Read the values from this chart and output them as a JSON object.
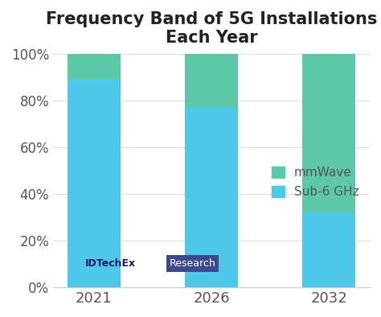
{
  "title_line1": "Frequency Band of 5G Installations",
  "title_line2": "Each Year",
  "categories": [
    "2021",
    "2026",
    "2032"
  ],
  "sub6_values": [
    89,
    77,
    32
  ],
  "mmwave_values": [
    11,
    23,
    68
  ],
  "sub6_color": "#4DC8E8",
  "mmwave_color": "#5CC8A8",
  "background_color": "#ffffff",
  "legend_mmwave": "mmWave",
  "legend_sub6": "Sub-6 GHz",
  "ytick_labels": [
    "0%",
    "20%",
    "40%",
    "60%",
    "80%",
    "100%"
  ],
  "ytick_values": [
    0,
    20,
    40,
    60,
    80,
    100
  ],
  "ylim": [
    0,
    100
  ],
  "bar_width": 0.45,
  "watermark_text1": "IDTechEx",
  "watermark_text2": "Research",
  "watermark_color1": "#1a1a6e",
  "watermark_box_color": "#3d4b8e",
  "title_fontsize": 15,
  "axis_fontsize": 12,
  "legend_fontsize": 11,
  "tick_label_color": "#555555"
}
